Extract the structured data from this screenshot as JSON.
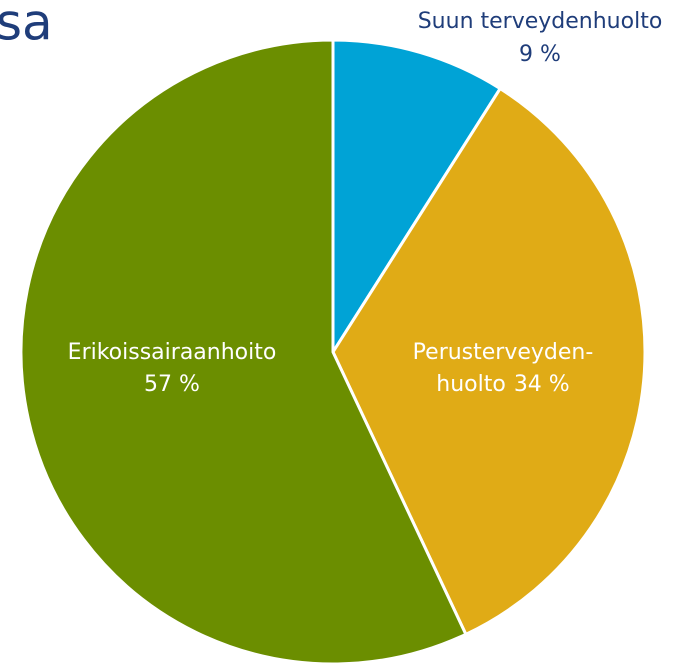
{
  "chart_data": {
    "type": "pie",
    "title": "sa",
    "categories": [
      [
        "Suun terveydenhuolto"
      ],
      [
        "Perusterveyden-",
        "huolto"
      ],
      [
        "Erikoissairaanhoito"
      ]
    ],
    "values": [
      9,
      34,
      57
    ],
    "value_labels": [
      "9 %",
      "34 %",
      "57 %"
    ],
    "colors": [
      "#00a3d6",
      "#e0ab16",
      "#6b8e00"
    ]
  }
}
